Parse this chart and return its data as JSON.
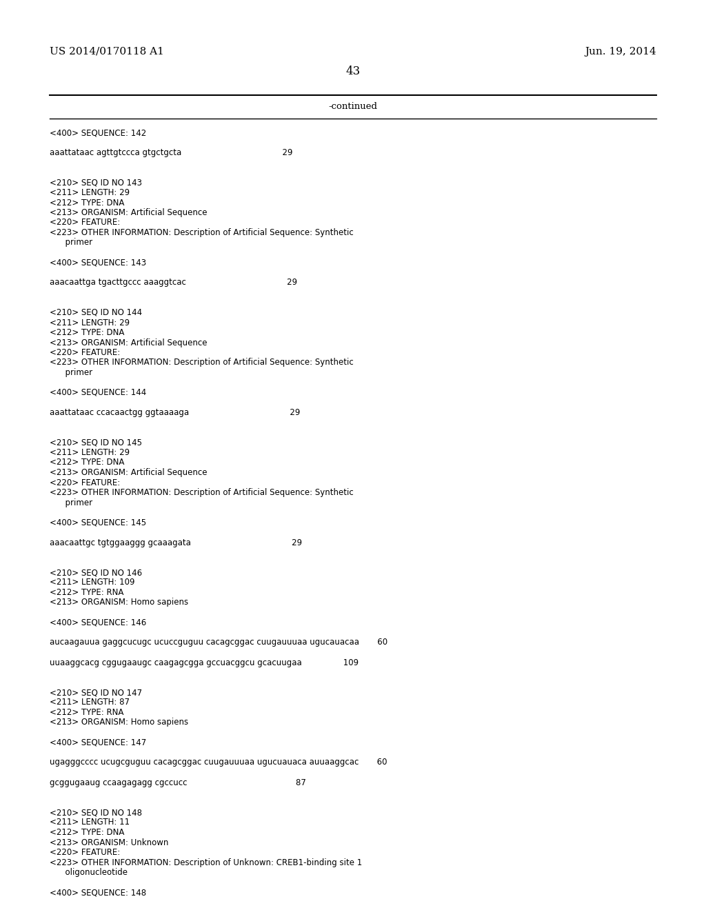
{
  "background_color": "#ffffff",
  "header_left": "US 2014/0170118 A1",
  "header_right": "Jun. 19, 2014",
  "page_number": "43",
  "continued_label": "-continued",
  "content_lines": [
    "<400> SEQUENCE: 142",
    "",
    "aaattataac agttgtccca gtgctgcta                                       29",
    "",
    "",
    "<210> SEQ ID NO 143",
    "<211> LENGTH: 29",
    "<212> TYPE: DNA",
    "<213> ORGANISM: Artificial Sequence",
    "<220> FEATURE:",
    "<223> OTHER INFORMATION: Description of Artificial Sequence: Synthetic",
    "      primer",
    "",
    "<400> SEQUENCE: 143",
    "",
    "aaacaattga tgacttgccc aaaggtcac                                       29",
    "",
    "",
    "<210> SEQ ID NO 144",
    "<211> LENGTH: 29",
    "<212> TYPE: DNA",
    "<213> ORGANISM: Artificial Sequence",
    "<220> FEATURE:",
    "<223> OTHER INFORMATION: Description of Artificial Sequence: Synthetic",
    "      primer",
    "",
    "<400> SEQUENCE: 144",
    "",
    "aaattataac ccacaactgg ggtaaaaga                                       29",
    "",
    "",
    "<210> SEQ ID NO 145",
    "<211> LENGTH: 29",
    "<212> TYPE: DNA",
    "<213> ORGANISM: Artificial Sequence",
    "<220> FEATURE:",
    "<223> OTHER INFORMATION: Description of Artificial Sequence: Synthetic",
    "      primer",
    "",
    "<400> SEQUENCE: 145",
    "",
    "aaacaattgc tgtggaaggg gcaaagata                                       29",
    "",
    "",
    "<210> SEQ ID NO 146",
    "<211> LENGTH: 109",
    "<212> TYPE: RNA",
    "<213> ORGANISM: Homo sapiens",
    "",
    "<400> SEQUENCE: 146",
    "",
    "aucaagauua gaggcucugc ucuccguguu cacagcggac cuugauuuaa ugucauacaa       60",
    "",
    "uuaaggcacg cggugaaugc caagagcgga gccuacggcu gcacuugaa                109",
    "",
    "",
    "<210> SEQ ID NO 147",
    "<211> LENGTH: 87",
    "<212> TYPE: RNA",
    "<213> ORGANISM: Homo sapiens",
    "",
    "<400> SEQUENCE: 147",
    "",
    "ugagggcccc ucugcguguu cacagcggac cuugauuuaa ugucuauaca auuaaggcac       60",
    "",
    "gcggugaaug ccaagagagg cgccucc                                          87",
    "",
    "",
    "<210> SEQ ID NO 148",
    "<211> LENGTH: 11",
    "<212> TYPE: DNA",
    "<213> ORGANISM: Unknown",
    "<220> FEATURE:",
    "<223> OTHER INFORMATION: Description of Unknown: CREB1-binding site 1",
    "      oligonucleotide",
    "",
    "<400> SEQUENCE: 148"
  ]
}
